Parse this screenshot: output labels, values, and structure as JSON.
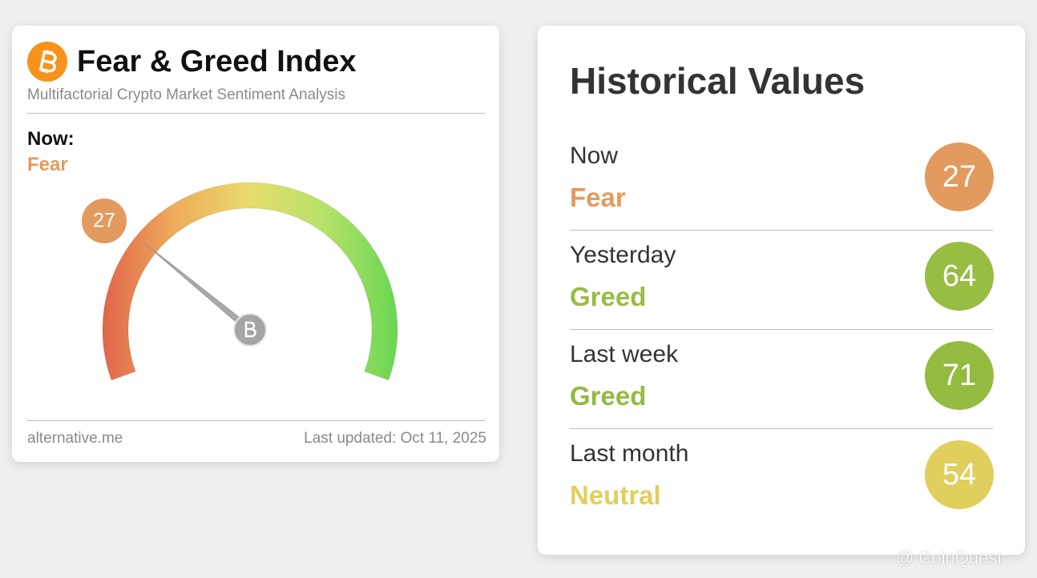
{
  "left_card": {
    "title": "Fear & Greed Index",
    "subtitle": "Multifactorial Crypto Market Sentiment Analysis",
    "now_label": "Now:",
    "now_class": "Fear",
    "now_color": "#e39a5e",
    "gauge": {
      "value": 27,
      "scale": [
        0,
        100
      ],
      "color": "#e39a5e"
    },
    "source": "alternative.me",
    "last_updated": "Last updated: Oct 11, 2025"
  },
  "right_card": {
    "title": "Historical Values",
    "rows": [
      {
        "period": "Now",
        "class": "Fear",
        "value": 27,
        "color": "#e39a5e"
      },
      {
        "period": "Yesterday",
        "class": "Greed",
        "value": 64,
        "color": "#97bd42"
      },
      {
        "period": "Last week",
        "class": "Greed",
        "value": 71,
        "color": "#93bb3f"
      },
      {
        "period": "Last month",
        "class": "Neutral",
        "value": 54,
        "color": "#e0cf5c"
      }
    ]
  },
  "watermark": "@ CoinQuest"
}
